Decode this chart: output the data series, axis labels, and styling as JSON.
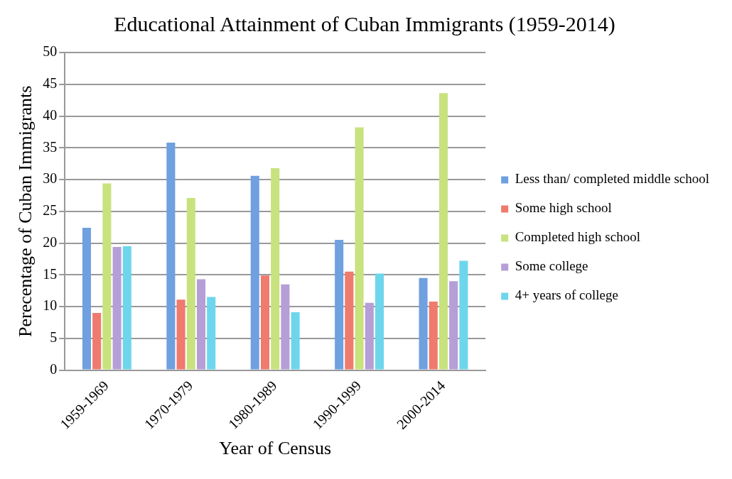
{
  "chart_data": {
    "type": "bar",
    "title": "Educational Attainment of Cuban Immigrants (1959-2014)",
    "xlabel": "Year of Census",
    "ylabel": "Perecentage of Cuban Immigrants",
    "categories": [
      "1959-1969",
      "1970-1979",
      "1980-1989",
      "1990-1999",
      "2000-2014"
    ],
    "series": [
      {
        "name": "Less than/ completed middle school",
        "color": "#6fa0e0",
        "values": [
          22.4,
          35.8,
          30.6,
          20.5,
          14.5
        ]
      },
      {
        "name": "Some high school",
        "color": "#ef7a6e",
        "values": [
          9.0,
          11.1,
          14.9,
          15.5,
          10.8
        ]
      },
      {
        "name": "Completed high school",
        "color": "#c8e27e",
        "values": [
          29.4,
          27.1,
          31.8,
          38.2,
          43.6
        ]
      },
      {
        "name": "Some college",
        "color": "#b59fd6",
        "values": [
          19.4,
          14.3,
          13.5,
          10.6,
          14.0
        ]
      },
      {
        "name": "4+ years of college",
        "color": "#6dd6ec",
        "values": [
          19.5,
          11.5,
          9.1,
          15.2,
          17.2
        ]
      }
    ],
    "ylim": [
      0,
      50
    ],
    "yticks": [
      0,
      5,
      10,
      15,
      20,
      25,
      30,
      35,
      40,
      45,
      50
    ],
    "grid": "y",
    "legend": "right"
  }
}
